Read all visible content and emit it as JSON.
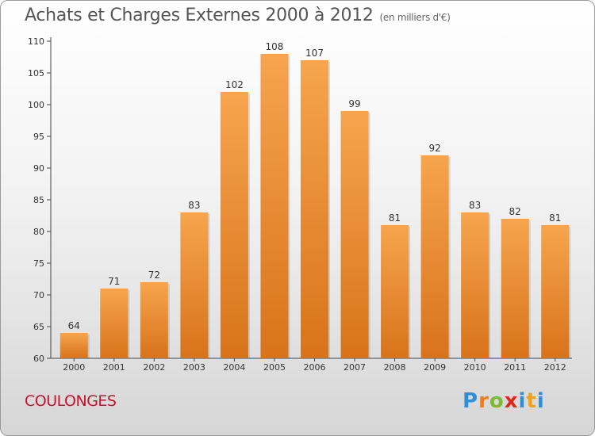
{
  "header": {
    "title": "Achats et Charges Externes 2000 à 2012",
    "unit": "(en milliers d'€)"
  },
  "footer": {
    "place": "COULONGES",
    "logo_letters": [
      "P",
      "r",
      "o",
      "x",
      "i",
      "t",
      "i"
    ]
  },
  "colors": {
    "bar_top": "#f6a54e",
    "bar_bottom": "#d8731a",
    "place": "#c8102e",
    "logo": [
      "#2e8fd6",
      "#f07c1c",
      "#7dbb2e",
      "#e0261f",
      "#2e8fd6",
      "#f0a21c",
      "#2e8fd6"
    ]
  },
  "chart_data": {
    "type": "bar",
    "title": "Achats et Charges Externes 2000 à 2012",
    "subtitle": "(en milliers d'€)",
    "categories": [
      "2000",
      "2001",
      "2002",
      "2003",
      "2004",
      "2005",
      "2006",
      "2007",
      "2008",
      "2009",
      "2010",
      "2011",
      "2012"
    ],
    "values": [
      64,
      71,
      72,
      83,
      102,
      108,
      107,
      99,
      81,
      92,
      83,
      82,
      81
    ],
    "ylim": [
      60,
      110
    ],
    "yticks": [
      60,
      65,
      70,
      75,
      80,
      85,
      90,
      95,
      100,
      105,
      110
    ],
    "grid": false,
    "legend": "none"
  }
}
